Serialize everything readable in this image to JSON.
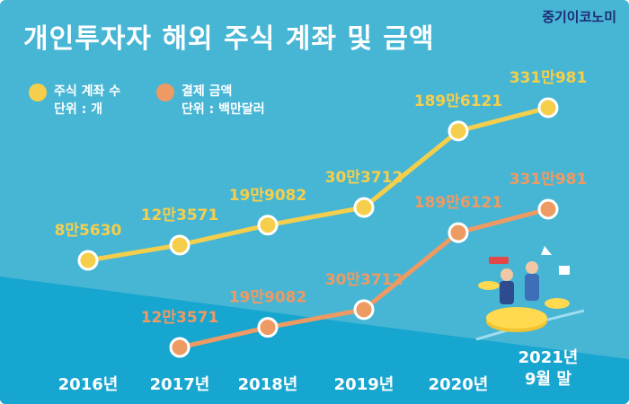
{
  "title": "개인투자자 해외 주식 계좌 및 금액",
  "brand": "중기이코노미",
  "legend": [
    {
      "name": "주식 계좌 수",
      "unit": "단위 : 개",
      "color": "#f5cf4b"
    },
    {
      "name": "결제 금액",
      "unit": "단위 : 백만달러",
      "color": "#ee9a63"
    }
  ],
  "colors": {
    "bg_top": "#47b6d5",
    "bg_bottom": "#17a6d0",
    "label_yellow": "#f5cf4b",
    "label_orange": "#ee9a63",
    "year_label": "#ffffff"
  },
  "chart_data": {
    "type": "line",
    "categories": [
      "2016년",
      "2017년",
      "2018년",
      "2019년",
      "2020년",
      "2021년 9월 말"
    ],
    "series": [
      {
        "name": "주식 계좌 수",
        "unit": "개",
        "values": [
          85630,
          123571,
          199082,
          303712,
          1896121,
          3310981
        ],
        "labels": [
          "8만5630",
          "12만3571",
          "19만9082",
          "30만3712",
          "189만6121",
          "331만981"
        ]
      },
      {
        "name": "결제 금액",
        "unit": "백만달러",
        "values": [
          null,
          123571,
          199082,
          303712,
          1896121,
          3310981
        ],
        "labels": [
          "",
          "12만3571",
          "19만9082",
          "30만3712",
          "189만6121",
          "331만981"
        ]
      }
    ]
  }
}
